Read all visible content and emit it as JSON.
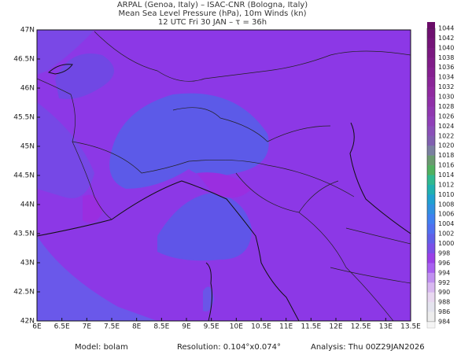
{
  "header": {
    "lines": [
      "ARPAL (Genoa, Italy)  –  ISAC-CNR (Bologna, Italy)",
      "Mean Sea Level Pressure (hPa), 10m Winds (kn)",
      "12 UTC Fri 30 JAN  –  τ = 36h"
    ]
  },
  "map": {
    "lon_labels": [
      "6E",
      "6.5E",
      "7E",
      "7.5E",
      "8E",
      "8.5E",
      "9E",
      "9.5E",
      "10E",
      "10.5E",
      "11E",
      "11.5E",
      "12E",
      "12.5E",
      "13E",
      "13.5E"
    ],
    "lat_labels": [
      "47N",
      "46.5N",
      "46N",
      "45.5N",
      "45N",
      "44.5N",
      "44N",
      "43.5N",
      "43N",
      "42.5N",
      "42N"
    ]
  },
  "colorbar": {
    "labels": [
      "1044",
      "1042",
      "1040",
      "1038",
      "1036",
      "1034",
      "1032",
      "1030",
      "1028",
      "1026",
      "1024",
      "1022",
      "1020",
      "1018",
      "1016",
      "1014",
      "1012",
      "1010",
      "1008",
      "1006",
      "1004",
      "1002",
      "1000",
      "998",
      "996",
      "994",
      "992",
      "990",
      "988",
      "986",
      "984"
    ],
    "colors": [
      "#6e1070",
      "#741478",
      "#7a1880",
      "#801c88",
      "#852090",
      "#8a2598",
      "#902aa0",
      "#9030a8",
      "#9038b0",
      "#9040b8",
      "#8a50b8",
      "#8060b0",
      "#7a80a0",
      "#6a9a70",
      "#50b060",
      "#30b890",
      "#20b0b0",
      "#20a0d0",
      "#3090e0",
      "#4080f0",
      "#5070f0",
      "#6060e8",
      "#7a50e8",
      "#9a40e8",
      "#a860f0",
      "#c090f0",
      "#d8b8f0",
      "#e8d8f0",
      "#e4e4ee",
      "#ededed"
    ]
  },
  "footer": {
    "items": [
      "Model: bolam",
      "Resolution: 0.104°x0.074°",
      "Analysis: Thu 00Z29JAN2026"
    ]
  }
}
